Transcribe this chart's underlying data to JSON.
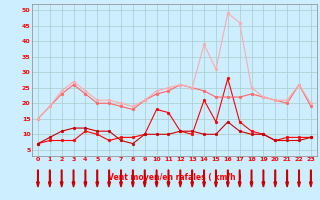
{
  "x": [
    0,
    1,
    2,
    3,
    4,
    5,
    6,
    7,
    8,
    9,
    10,
    11,
    12,
    13,
    14,
    15,
    16,
    17,
    18,
    19,
    20,
    21,
    22,
    23
  ],
  "series": [
    {
      "color": "#ff0000",
      "linewidth": 0.8,
      "markersize": 2.0,
      "values": [
        7,
        8,
        8,
        8,
        11,
        10,
        8,
        9,
        9,
        10,
        18,
        17,
        11,
        10,
        21,
        14,
        28,
        14,
        11,
        10,
        8,
        9,
        9,
        9
      ]
    },
    {
      "color": "#cc0000",
      "linewidth": 0.8,
      "markersize": 2.0,
      "values": [
        7,
        9,
        11,
        12,
        12,
        11,
        11,
        8,
        7,
        10,
        10,
        10,
        11,
        11,
        10,
        10,
        14,
        11,
        10,
        10,
        8,
        8,
        8,
        9
      ]
    },
    {
      "color": "#ff6666",
      "linewidth": 0.8,
      "markersize": 2.0,
      "values": [
        15,
        19,
        23,
        26,
        23,
        20,
        20,
        19,
        18,
        21,
        23,
        24,
        26,
        25,
        24,
        22,
        22,
        22,
        23,
        22,
        21,
        20,
        26,
        19
      ]
    },
    {
      "color": "#ffaaaa",
      "linewidth": 0.8,
      "markersize": 2.0,
      "values": [
        15,
        19,
        24,
        27,
        24,
        21,
        21,
        20,
        19,
        21,
        24,
        25,
        26,
        25,
        39,
        31,
        49,
        46,
        25,
        22,
        21,
        21,
        26,
        20
      ]
    }
  ],
  "xlabel": "Vent moyen/en rafales ( km/h )",
  "xlim_left": -0.5,
  "xlim_right": 23.5,
  "ylim_bottom": 3,
  "ylim_top": 52,
  "yticks": [
    5,
    10,
    15,
    20,
    25,
    30,
    35,
    40,
    45,
    50
  ],
  "xticks": [
    0,
    1,
    2,
    3,
    4,
    5,
    6,
    7,
    8,
    9,
    10,
    11,
    12,
    13,
    14,
    15,
    16,
    17,
    18,
    19,
    20,
    21,
    22,
    23
  ],
  "bg_color": "#cceeff",
  "grid_color": "#aacccc",
  "xlabel_color": "#ff0000",
  "tick_color": "#ff0000",
  "arrow_color": "#cc0000",
  "spine_color": "#888888"
}
